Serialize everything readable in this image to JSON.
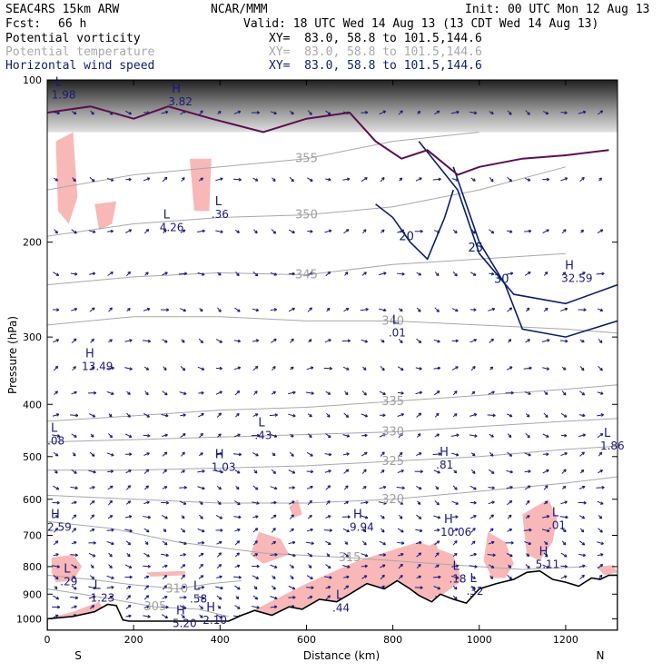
{
  "header": {
    "model": "SEAC4RS 15km ARW",
    "org": "NCAR/MMM",
    "init": "Init: 00 UTC Mon 12 Aug 13",
    "fcst_label": "Fcst:",
    "fcst_value": "66 h",
    "valid": "Valid: 18 UTC Wed 14 Aug 13 (13 CDT Wed 14 Aug 13)",
    "fields": [
      {
        "name": "Potential vorticity",
        "xy": "XY=  83.0, 58.8 to 101.5,144.6",
        "color": "#000000"
      },
      {
        "name": "Potential temperature",
        "xy": "XY=  83.0, 58.8 to 101.5,144.6",
        "color": "#a8a8a8"
      },
      {
        "name": "Horizontal wind speed",
        "xy": "XY=  83.0, 58.8 to 101.5,144.6",
        "color": "#0b1f6b"
      }
    ]
  },
  "chart_data": {
    "type": "cross-section",
    "xlabel": "Distance (km)",
    "ylabel": "Pressure (hPa)",
    "xlim": [
      0,
      1320
    ],
    "ylim": [
      1050,
      100
    ],
    "y_scale": "log",
    "x_ticks": [
      0,
      200,
      400,
      600,
      800,
      1000,
      1200
    ],
    "y_ticks": [
      100,
      200,
      300,
      400,
      500,
      600,
      700,
      800,
      900,
      1000
    ],
    "end_labels": {
      "left": "S",
      "right": "N"
    },
    "colors": {
      "pv_fill": "#f8b8b8",
      "theta": "#a8a8a8",
      "wind": "#0b1f6b",
      "pv_contour": "#5a1050",
      "terrain": "#ffffff"
    },
    "theta_contours": [
      {
        "label": "305",
        "points": [
          [
            0,
            880
          ],
          [
            80,
            900
          ],
          [
            150,
            920
          ],
          [
            250,
            950
          ],
          [
            350,
            960
          ],
          [
            420,
            990
          ]
        ]
      },
      {
        "label": "310",
        "points": [
          [
            0,
            830
          ],
          [
            100,
            845
          ],
          [
            200,
            865
          ],
          [
            300,
            880
          ],
          [
            380,
            860
          ],
          [
            450,
            850
          ]
        ]
      },
      {
        "label": "315",
        "points": [
          [
            0,
            660
          ],
          [
            150,
            680
          ],
          [
            300,
            720
          ],
          [
            500,
            755
          ],
          [
            700,
            770
          ],
          [
            900,
            790
          ],
          [
            1100,
            810
          ],
          [
            1250,
            800
          ]
        ]
      },
      {
        "label": "320",
        "points": [
          [
            0,
            590
          ],
          [
            200,
            600
          ],
          [
            400,
            610
          ],
          [
            600,
            610
          ],
          [
            800,
            600
          ],
          [
            1000,
            580
          ],
          [
            1200,
            560
          ],
          [
            1320,
            545
          ]
        ]
      },
      {
        "label": "325",
        "points": [
          [
            0,
            530
          ],
          [
            200,
            530
          ],
          [
            400,
            525
          ],
          [
            600,
            520
          ],
          [
            800,
            510
          ],
          [
            1000,
            500
          ],
          [
            1200,
            485
          ],
          [
            1320,
            478
          ]
        ]
      },
      {
        "label": "330",
        "points": [
          [
            0,
            470
          ],
          [
            200,
            465
          ],
          [
            400,
            460
          ],
          [
            600,
            455
          ],
          [
            800,
            450
          ],
          [
            1000,
            440
          ],
          [
            1200,
            430
          ],
          [
            1320,
            425
          ]
        ]
      },
      {
        "label": "335",
        "points": [
          [
            0,
            430
          ],
          [
            200,
            420
          ],
          [
            400,
            410
          ],
          [
            600,
            405
          ],
          [
            800,
            395
          ],
          [
            1000,
            385
          ],
          [
            1200,
            375
          ],
          [
            1320,
            368
          ]
        ]
      },
      {
        "label": "340",
        "points": [
          [
            0,
            285
          ],
          [
            200,
            275
          ],
          [
            400,
            275
          ],
          [
            600,
            280
          ],
          [
            800,
            280
          ],
          [
            1000,
            285
          ],
          [
            1200,
            290
          ],
          [
            1320,
            295
          ]
        ]
      },
      {
        "label": "345",
        "points": [
          [
            0,
            240
          ],
          [
            200,
            232
          ],
          [
            400,
            228
          ],
          [
            600,
            230
          ],
          [
            800,
            220
          ],
          [
            1000,
            215
          ],
          [
            1200,
            210
          ]
        ]
      },
      {
        "label": "350",
        "points": [
          [
            0,
            195
          ],
          [
            200,
            185
          ],
          [
            400,
            180
          ],
          [
            600,
            178
          ],
          [
            800,
            172
          ],
          [
            1000,
            160
          ],
          [
            1200,
            145
          ]
        ]
      },
      {
        "label": "355",
        "points": [
          [
            0,
            160
          ],
          [
            200,
            150
          ],
          [
            400,
            145
          ],
          [
            600,
            140
          ],
          [
            800,
            130
          ],
          [
            1000,
            125
          ]
        ]
      }
    ],
    "wind_contours": [
      {
        "label": "20",
        "points": [
          [
            760,
            170
          ],
          [
            800,
            180
          ],
          [
            840,
            200
          ],
          [
            880,
            215
          ],
          [
            920,
            180
          ],
          [
            940,
            160
          ]
        ]
      },
      {
        "label": "25",
        "points": [
          [
            860,
            130
          ],
          [
            950,
            160
          ],
          [
            1000,
            210
          ],
          [
            1080,
            250
          ],
          [
            1200,
            260
          ],
          [
            1320,
            240
          ]
        ]
      },
      {
        "label": "30",
        "points": [
          [
            940,
            145
          ],
          [
            1000,
            200
          ],
          [
            1060,
            240
          ],
          [
            1100,
            290
          ],
          [
            1200,
            300
          ],
          [
            1320,
            280
          ]
        ]
      }
    ],
    "highs_lows": [
      {
        "type": "L",
        "value": "1.98",
        "x": 10,
        "p": 105
      },
      {
        "type": "H",
        "value": "3.82",
        "x": 280,
        "p": 108
      },
      {
        "type": "L",
        "value": "4.26",
        "x": 260,
        "p": 185
      },
      {
        "type": "L",
        "value": ".36",
        "x": 380,
        "p": 175
      },
      {
        "type": "L",
        "value": ".01",
        "x": 790,
        "p": 290
      },
      {
        "type": "H",
        "value": "32.59",
        "x": 1190,
        "p": 230
      },
      {
        "type": "H",
        "value": "13.49",
        "x": 80,
        "p": 335
      },
      {
        "type": "L",
        "value": ".08",
        "x": 0,
        "p": 460
      },
      {
        "type": "L",
        "value": ".43",
        "x": 480,
        "p": 450
      },
      {
        "type": "H",
        "value": "1.03",
        "x": 380,
        "p": 515
      },
      {
        "type": "H",
        "value": ".81",
        "x": 900,
        "p": 510
      },
      {
        "type": "L",
        "value": "1.86",
        "x": 1280,
        "p": 470
      },
      {
        "type": "H",
        "value": "2.59",
        "x": 0,
        "p": 665
      },
      {
        "type": "H",
        "value": "9.94",
        "x": 700,
        "p": 665
      },
      {
        "type": "H",
        "value": "10.06",
        "x": 910,
        "p": 680
      },
      {
        "type": "L",
        "value": ".01",
        "x": 1160,
        "p": 660
      },
      {
        "type": "H",
        "value": "5.11",
        "x": 1130,
        "p": 780
      },
      {
        "type": "L",
        "value": ".18",
        "x": 930,
        "p": 830
      },
      {
        "type": "L",
        "value": ".29",
        "x": 30,
        "p": 840
      },
      {
        "type": "L",
        "value": "1.23",
        "x": 100,
        "p": 900
      },
      {
        "type": "L",
        "value": ".58",
        "x": 330,
        "p": 905
      },
      {
        "type": "L",
        "value": ".32",
        "x": 970,
        "p": 875
      },
      {
        "type": "L",
        "value": ".44",
        "x": 660,
        "p": 940
      },
      {
        "type": "H",
        "value": "2.10",
        "x": 360,
        "p": 990
      },
      {
        "type": "H",
        "value": "5.20",
        "x": 290,
        "p": 1005
      }
    ],
    "terrain": [
      [
        0,
        1050
      ],
      [
        0,
        1000
      ],
      [
        60,
        990
      ],
      [
        110,
        970
      ],
      [
        140,
        940
      ],
      [
        160,
        945
      ],
      [
        175,
        1005
      ],
      [
        190,
        1010
      ],
      [
        420,
        1010
      ],
      [
        450,
        985
      ],
      [
        480,
        965
      ],
      [
        520,
        985
      ],
      [
        560,
        950
      ],
      [
        590,
        960
      ],
      [
        630,
        920
      ],
      [
        670,
        930
      ],
      [
        700,
        900
      ],
      [
        740,
        860
      ],
      [
        780,
        880
      ],
      [
        810,
        850
      ],
      [
        840,
        880
      ],
      [
        860,
        905
      ],
      [
        890,
        930
      ],
      [
        910,
        900
      ],
      [
        940,
        920
      ],
      [
        970,
        935
      ],
      [
        1000,
        880
      ],
      [
        1040,
        860
      ],
      [
        1080,
        845
      ],
      [
        1110,
        820
      ],
      [
        1140,
        815
      ],
      [
        1170,
        845
      ],
      [
        1200,
        855
      ],
      [
        1230,
        870
      ],
      [
        1260,
        840
      ],
      [
        1280,
        845
      ],
      [
        1300,
        830
      ],
      [
        1320,
        830
      ],
      [
        1320,
        1050
      ]
    ]
  }
}
